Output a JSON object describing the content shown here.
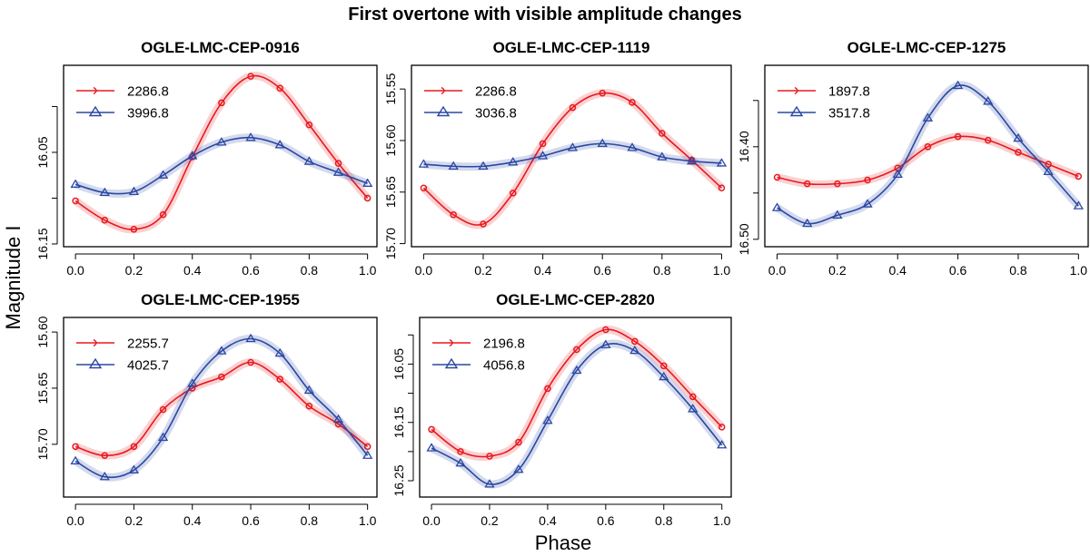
{
  "chart_data": {
    "title": "First overtone with visible amplitude changes",
    "xlabel": "Phase",
    "ylabel": "Magnitude I",
    "colors": {
      "series1": "#e8191f",
      "series2": "#2a47a3"
    },
    "markers": {
      "series1": "circle",
      "series2": "triangle"
    },
    "panels": [
      {
        "type": "line",
        "title": "OGLE-LMC-CEP-0916",
        "xlim": [
          0,
          1
        ],
        "ylim": [
          15.955,
          16.153
        ],
        "y_inverted": true,
        "xticks": [
          "0.0",
          "0.2",
          "0.4",
          "0.6",
          "0.8",
          "1.0"
        ],
        "yticks": [
          16.0,
          16.05,
          16.1,
          16.15
        ],
        "yticklabels": [
          "",
          "16.05",
          "",
          "16.15"
        ],
        "phase": [
          0,
          0.1,
          0.2,
          0.3,
          0.4,
          0.5,
          0.6,
          0.7,
          0.8,
          0.9,
          1.0
        ],
        "series": [
          {
            "name": "2286.8",
            "values": [
              16.103,
              16.124,
              16.134,
              16.118,
              16.055,
              15.996,
              15.967,
              15.98,
              16.02,
              16.062,
              16.1
            ]
          },
          {
            "name": "3996.8",
            "values": [
              16.085,
              16.094,
              16.093,
              16.075,
              16.054,
              16.039,
              16.034,
              16.042,
              16.06,
              16.072,
              16.084
            ]
          }
        ]
      },
      {
        "type": "line",
        "title": "OGLE-LMC-CEP-1119",
        "xlim": [
          0,
          1
        ],
        "ylim": [
          15.527,
          15.703
        ],
        "y_inverted": true,
        "xticks": [
          "0.0",
          "0.2",
          "0.4",
          "0.6",
          "0.8",
          "1.0"
        ],
        "yticks": [
          15.55,
          15.6,
          15.65,
          15.7
        ],
        "yticklabels": [
          "15.55",
          "15.60",
          "15.65",
          "15.70"
        ],
        "phase": [
          0,
          0.1,
          0.2,
          0.3,
          0.4,
          0.5,
          0.6,
          0.7,
          0.8,
          0.9,
          1.0
        ],
        "series": [
          {
            "name": "2286.8",
            "values": [
              15.646,
              15.672,
              15.681,
              15.651,
              15.603,
              15.568,
              15.554,
              15.563,
              15.593,
              15.619,
              15.646
            ]
          },
          {
            "name": "3036.8",
            "values": [
              15.623,
              15.625,
              15.625,
              15.621,
              15.615,
              15.607,
              15.603,
              15.607,
              15.616,
              15.62,
              15.622
            ]
          }
        ]
      },
      {
        "type": "line",
        "title": "OGLE-LMC-CEP-1275",
        "xlim": [
          0,
          1
        ],
        "ylim": [
          16.312,
          16.508
        ],
        "y_inverted": true,
        "xticks": [
          "0.0",
          "0.2",
          "0.4",
          "0.6",
          "0.8",
          "1.0"
        ],
        "yticks": [
          16.35,
          16.4,
          16.45,
          16.5
        ],
        "yticklabels": [
          "",
          "16.40",
          "",
          "16.50"
        ],
        "phase": [
          0,
          0.1,
          0.2,
          0.3,
          0.4,
          0.5,
          0.6,
          0.7,
          0.8,
          0.9,
          1.0
        ],
        "series": [
          {
            "name": "1897.8",
            "values": [
              16.433,
              16.44,
              16.44,
              16.436,
              16.423,
              16.4,
              16.389,
              16.393,
              16.406,
              16.419,
              16.432
            ]
          },
          {
            "name": "3517.8",
            "values": [
              16.466,
              16.483,
              16.474,
              16.462,
              16.43,
              16.369,
              16.334,
              16.351,
              16.391,
              16.427,
              16.464
            ]
          }
        ]
      },
      {
        "type": "line",
        "title": "OGLE-LMC-CEP-1955",
        "xlim": [
          0,
          1
        ],
        "ylim": [
          15.587,
          15.747
        ],
        "y_inverted": true,
        "xticks": [
          "0.0",
          "0.2",
          "0.4",
          "0.6",
          "0.8",
          "1.0"
        ],
        "yticks": [
          15.6,
          15.65,
          15.7
        ],
        "yticklabels": [
          "15.60",
          "15.65",
          "15.70"
        ],
        "phase": [
          0,
          0.1,
          0.2,
          0.3,
          0.4,
          0.5,
          0.6,
          0.7,
          0.8,
          0.9,
          1.0
        ],
        "series": [
          {
            "name": "2255.7",
            "values": [
              15.702,
              15.71,
              15.702,
              15.669,
              15.65,
              15.64,
              15.627,
              15.642,
              15.666,
              15.682,
              15.702
            ]
          },
          {
            "name": "4025.7",
            "values": [
              15.715,
              15.729,
              15.723,
              15.694,
              15.646,
              15.617,
              15.606,
              15.619,
              15.652,
              15.678,
              15.71
            ]
          }
        ]
      },
      {
        "type": "line",
        "title": "OGLE-LMC-CEP-2820",
        "xlim": [
          0,
          1
        ],
        "ylim": [
          15.97,
          16.278
        ],
        "y_inverted": true,
        "xticks": [
          "0.0",
          "0.2",
          "0.4",
          "0.6",
          "0.8",
          "1.0"
        ],
        "yticks": [
          16.0,
          16.05,
          16.1,
          16.15,
          16.2,
          16.25
        ],
        "yticklabels": [
          "",
          "16.05",
          "",
          "16.15",
          "",
          "16.25"
        ],
        "phase": [
          0,
          0.1,
          0.2,
          0.3,
          0.4,
          0.5,
          0.6,
          0.7,
          0.8,
          0.9,
          1.0
        ],
        "series": [
          {
            "name": "2196.8",
            "values": [
              16.162,
              16.2,
              16.208,
              16.184,
              16.092,
              16.025,
              15.991,
              16.011,
              16.053,
              16.106,
              16.158
            ]
          },
          {
            "name": "4056.8",
            "values": [
              16.194,
              16.22,
              16.256,
              16.231,
              16.147,
              16.061,
              16.017,
              16.027,
              16.072,
              16.127,
              16.189
            ]
          }
        ]
      }
    ]
  }
}
